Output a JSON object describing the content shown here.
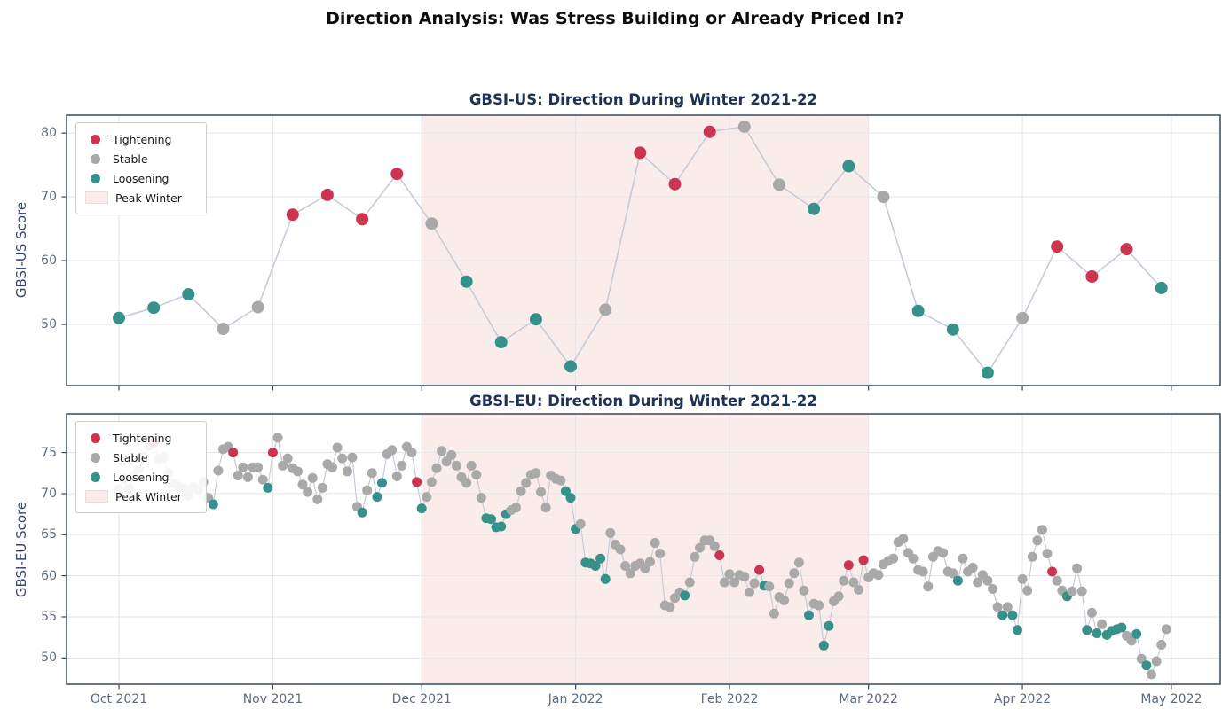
{
  "figure": {
    "title": "Direction Analysis: Was Stress Building or Already Priced In?"
  },
  "colors": {
    "Tightening": "#cc3550",
    "Stable": "#a9a9a9",
    "Loosening": "#35918a",
    "peak_winter_fill": "#fbecec",
    "line": "#c5ccd8",
    "spine": "#33475e",
    "grid": "#e5e5e8",
    "title_navy": "#1e3156",
    "tick_label": "#5d6b7e"
  },
  "legend": {
    "items": [
      {
        "key": "Tightening",
        "label": "Tightening"
      },
      {
        "key": "Stable",
        "label": "Stable"
      },
      {
        "key": "Loosening",
        "label": "Loosening"
      },
      {
        "key": "PeakWinter",
        "label": "Peak Winter"
      }
    ]
  },
  "x_axis": {
    "tick_labels": [
      "Oct 2021",
      "Nov 2021",
      "Dec 2021",
      "Jan 2022",
      "Feb 2022",
      "Mar 2022",
      "Apr 2022",
      "May 2022"
    ],
    "tick_days": [
      0,
      31,
      61,
      92,
      123,
      151,
      182,
      212
    ]
  },
  "peak_winter": {
    "label": "Peak Winter",
    "start_day": 61,
    "end_day": 151
  },
  "direction_legend": {
    "T": "Tightening",
    "S": "Stable",
    "L": "Loosening"
  },
  "chart_data": [
    {
      "type": "line",
      "id": "us",
      "title": "GBSI-US: Direction During Winter 2021-22",
      "ylabel": "GBSI-US Score",
      "x_start": "Oct 2021",
      "x_step_days": 7,
      "ylim": [
        40.4,
        82.8
      ],
      "yticks": [
        50,
        60,
        70,
        80
      ],
      "points": [
        [
          51.0,
          "L"
        ],
        [
          52.6,
          "L"
        ],
        [
          54.7,
          "L"
        ],
        [
          49.3,
          "S"
        ],
        [
          52.7,
          "S"
        ],
        [
          67.2,
          "T"
        ],
        [
          70.3,
          "T"
        ],
        [
          66.5,
          "T"
        ],
        [
          73.6,
          "T"
        ],
        [
          65.8,
          "S"
        ],
        [
          56.7,
          "L"
        ],
        [
          47.2,
          "L"
        ],
        [
          50.8,
          "L"
        ],
        [
          43.4,
          "L"
        ],
        [
          52.3,
          "S"
        ],
        [
          76.9,
          "T"
        ],
        [
          72.0,
          "T"
        ],
        [
          80.2,
          "T"
        ],
        [
          81.0,
          "S"
        ],
        [
          71.9,
          "S"
        ],
        [
          68.1,
          "L"
        ],
        [
          74.8,
          "L"
        ],
        [
          70.0,
          "S"
        ],
        [
          52.1,
          "L"
        ],
        [
          49.2,
          "L"
        ],
        [
          42.4,
          "L"
        ],
        [
          51.0,
          "S"
        ],
        [
          62.2,
          "T"
        ],
        [
          57.5,
          "T"
        ],
        [
          61.8,
          "T"
        ],
        [
          55.7,
          "L"
        ]
      ]
    },
    {
      "type": "line",
      "id": "eu",
      "title": "GBSI-EU: Direction During Winter 2021-22",
      "ylabel": "GBSI-EU Score",
      "x_start": "Oct 2021",
      "x_step_days": 1,
      "ylim": [
        46.8,
        79.7
      ],
      "yticks": [
        50,
        55,
        60,
        65,
        70,
        75
      ],
      "points": [
        [
          70.5,
          "S"
        ],
        [
          71.8,
          "S"
        ],
        [
          70.6,
          "S"
        ],
        [
          72.2,
          "S"
        ],
        [
          73.0,
          "S"
        ],
        [
          74.5,
          "S"
        ],
        [
          75.8,
          "S"
        ],
        [
          76.2,
          "T"
        ],
        [
          74.2,
          "S"
        ],
        [
          74.4,
          "S"
        ],
        [
          72.5,
          "S"
        ],
        [
          71.2,
          "S"
        ],
        [
          70.9,
          "S"
        ],
        [
          70.7,
          "S"
        ],
        [
          69.8,
          "S"
        ],
        [
          70.8,
          "S"
        ],
        [
          70.4,
          "S"
        ],
        [
          71.4,
          "S"
        ],
        [
          69.5,
          "S"
        ],
        [
          68.7,
          "L"
        ],
        [
          72.8,
          "S"
        ],
        [
          75.4,
          "S"
        ],
        [
          75.7,
          "S"
        ],
        [
          75.0,
          "T"
        ],
        [
          72.2,
          "S"
        ],
        [
          73.2,
          "S"
        ],
        [
          72.0,
          "S"
        ],
        [
          73.2,
          "S"
        ],
        [
          73.2,
          "S"
        ],
        [
          71.7,
          "S"
        ],
        [
          70.7,
          "L"
        ],
        [
          75.0,
          "T"
        ],
        [
          76.8,
          "S"
        ],
        [
          73.4,
          "S"
        ],
        [
          74.3,
          "S"
        ],
        [
          73.1,
          "S"
        ],
        [
          72.7,
          "S"
        ],
        [
          71.1,
          "S"
        ],
        [
          70.2,
          "S"
        ],
        [
          71.9,
          "S"
        ],
        [
          69.3,
          "S"
        ],
        [
          70.7,
          "S"
        ],
        [
          73.6,
          "S"
        ],
        [
          73.2,
          "S"
        ],
        [
          75.6,
          "S"
        ],
        [
          74.3,
          "S"
        ],
        [
          72.7,
          "S"
        ],
        [
          74.4,
          "S"
        ],
        [
          68.4,
          "S"
        ],
        [
          67.7,
          "L"
        ],
        [
          70.4,
          "S"
        ],
        [
          72.5,
          "S"
        ],
        [
          69.6,
          "L"
        ],
        [
          71.3,
          "L"
        ],
        [
          74.8,
          "S"
        ],
        [
          75.3,
          "S"
        ],
        [
          72.1,
          "S"
        ],
        [
          73.4,
          "S"
        ],
        [
          75.7,
          "S"
        ],
        [
          75.0,
          "S"
        ],
        [
          71.4,
          "T"
        ],
        [
          68.2,
          "L"
        ],
        [
          69.6,
          "S"
        ],
        [
          71.4,
          "S"
        ],
        [
          73.1,
          "S"
        ],
        [
          75.2,
          "S"
        ],
        [
          73.9,
          "S"
        ],
        [
          74.7,
          "S"
        ],
        [
          73.4,
          "S"
        ],
        [
          72.0,
          "S"
        ],
        [
          71.3,
          "S"
        ],
        [
          73.4,
          "S"
        ],
        [
          72.3,
          "S"
        ],
        [
          69.5,
          "S"
        ],
        [
          67.0,
          "L"
        ],
        [
          66.9,
          "L"
        ],
        [
          65.9,
          "L"
        ],
        [
          66.0,
          "L"
        ],
        [
          67.5,
          "L"
        ],
        [
          68.0,
          "S"
        ],
        [
          68.3,
          "S"
        ],
        [
          70.3,
          "S"
        ],
        [
          71.3,
          "S"
        ],
        [
          72.3,
          "S"
        ],
        [
          72.5,
          "S"
        ],
        [
          70.2,
          "S"
        ],
        [
          68.3,
          "S"
        ],
        [
          72.2,
          "S"
        ],
        [
          71.8,
          "S"
        ],
        [
          71.6,
          "S"
        ],
        [
          70.3,
          "L"
        ],
        [
          69.5,
          "L"
        ],
        [
          65.7,
          "L"
        ],
        [
          66.3,
          "S"
        ],
        [
          61.6,
          "L"
        ],
        [
          61.5,
          "L"
        ],
        [
          61.2,
          "L"
        ],
        [
          62.1,
          "L"
        ],
        [
          59.6,
          "L"
        ],
        [
          65.2,
          "S"
        ],
        [
          63.8,
          "S"
        ],
        [
          63.2,
          "S"
        ],
        [
          61.2,
          "S"
        ],
        [
          60.3,
          "S"
        ],
        [
          61.2,
          "S"
        ],
        [
          61.5,
          "S"
        ],
        [
          60.9,
          "S"
        ],
        [
          61.7,
          "S"
        ],
        [
          64.0,
          "S"
        ],
        [
          62.7,
          "S"
        ],
        [
          56.4,
          "S"
        ],
        [
          56.2,
          "S"
        ],
        [
          57.3,
          "S"
        ],
        [
          58.0,
          "S"
        ],
        [
          57.6,
          "L"
        ],
        [
          59.2,
          "S"
        ],
        [
          62.3,
          "S"
        ],
        [
          63.4,
          "S"
        ],
        [
          64.3,
          "S"
        ],
        [
          64.3,
          "S"
        ],
        [
          63.6,
          "S"
        ],
        [
          62.5,
          "T"
        ],
        [
          59.2,
          "S"
        ],
        [
          60.2,
          "S"
        ],
        [
          59.2,
          "S"
        ],
        [
          60.1,
          "S"
        ],
        [
          59.9,
          "S"
        ],
        [
          58.0,
          "S"
        ],
        [
          59.1,
          "S"
        ],
        [
          60.7,
          "T"
        ],
        [
          58.8,
          "L"
        ],
        [
          58.7,
          "S"
        ],
        [
          55.4,
          "S"
        ],
        [
          57.4,
          "S"
        ],
        [
          57.0,
          "S"
        ],
        [
          59.1,
          "S"
        ],
        [
          60.3,
          "S"
        ],
        [
          61.6,
          "S"
        ],
        [
          58.2,
          "S"
        ],
        [
          55.2,
          "L"
        ],
        [
          56.6,
          "S"
        ],
        [
          56.4,
          "S"
        ],
        [
          51.5,
          "L"
        ],
        [
          53.9,
          "L"
        ],
        [
          56.9,
          "S"
        ],
        [
          57.5,
          "S"
        ],
        [
          59.4,
          "S"
        ],
        [
          61.3,
          "T"
        ],
        [
          59.2,
          "S"
        ],
        [
          58.3,
          "S"
        ],
        [
          61.9,
          "T"
        ],
        [
          59.8,
          "S"
        ],
        [
          60.3,
          "S"
        ],
        [
          60.1,
          "S"
        ],
        [
          61.4,
          "S"
        ],
        [
          61.8,
          "S"
        ],
        [
          62.1,
          "S"
        ],
        [
          64.1,
          "S"
        ],
        [
          64.5,
          "S"
        ],
        [
          62.8,
          "S"
        ],
        [
          62.1,
          "S"
        ],
        [
          60.7,
          "S"
        ],
        [
          60.5,
          "S"
        ],
        [
          58.7,
          "S"
        ],
        [
          62.3,
          "S"
        ],
        [
          63.0,
          "S"
        ],
        [
          62.8,
          "S"
        ],
        [
          60.5,
          "S"
        ],
        [
          60.3,
          "S"
        ],
        [
          59.4,
          "L"
        ],
        [
          62.1,
          "S"
        ],
        [
          60.5,
          "S"
        ],
        [
          61.0,
          "S"
        ],
        [
          59.2,
          "S"
        ],
        [
          60.1,
          "S"
        ],
        [
          59.4,
          "S"
        ],
        [
          58.4,
          "S"
        ],
        [
          56.2,
          "S"
        ],
        [
          55.2,
          "L"
        ],
        [
          56.2,
          "S"
        ],
        [
          55.2,
          "L"
        ],
        [
          53.4,
          "L"
        ],
        [
          59.6,
          "S"
        ],
        [
          58.2,
          "S"
        ],
        [
          62.3,
          "S"
        ],
        [
          64.3,
          "S"
        ],
        [
          65.6,
          "S"
        ],
        [
          62.7,
          "S"
        ],
        [
          60.5,
          "T"
        ],
        [
          59.4,
          "S"
        ],
        [
          58.2,
          "S"
        ],
        [
          57.5,
          "L"
        ],
        [
          58.1,
          "S"
        ],
        [
          60.9,
          "S"
        ],
        [
          58.1,
          "S"
        ],
        [
          53.4,
          "L"
        ],
        [
          55.5,
          "S"
        ],
        [
          53.0,
          "L"
        ],
        [
          54.1,
          "S"
        ],
        [
          52.8,
          "L"
        ],
        [
          53.3,
          "L"
        ],
        [
          53.5,
          "L"
        ],
        [
          53.7,
          "L"
        ],
        [
          52.7,
          "S"
        ],
        [
          52.1,
          "S"
        ],
        [
          52.9,
          "L"
        ],
        [
          49.9,
          "S"
        ],
        [
          49.1,
          "L"
        ],
        [
          48.0,
          "S"
        ],
        [
          49.6,
          "S"
        ],
        [
          51.6,
          "S"
        ],
        [
          53.5,
          "S"
        ]
      ]
    }
  ]
}
